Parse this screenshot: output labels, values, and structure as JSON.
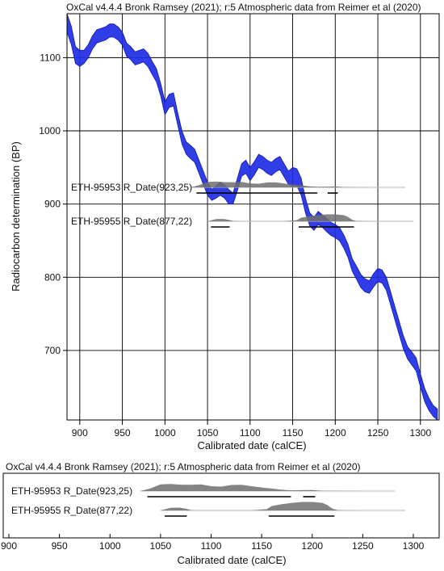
{
  "chart_data": [
    {
      "type": "area",
      "title": "OxCal v4.4.4 Bronk Ramsey (2021); r:5 Atmospheric data from Reimer et al (2020)",
      "xlabel": "Calibrated date (calCE)",
      "ylabel": "Radiocarbon determination (BP)",
      "xlim": [
        885,
        1322
      ],
      "ylim": [
        605,
        1160
      ],
      "x_ticks": [
        "900",
        "950",
        "1000",
        "1050",
        "1100",
        "1150",
        "1200",
        "1250",
        "1300"
      ],
      "y_ticks": [
        "700",
        "800",
        "900",
        "1000",
        "1100"
      ],
      "grid": true,
      "calibration_curve": {
        "colour": "#1f2ee6",
        "x": [
          885,
          890,
          895,
          900,
          905,
          910,
          915,
          920,
          925,
          930,
          935,
          940,
          945,
          950,
          955,
          960,
          965,
          970,
          975,
          980,
          985,
          990,
          995,
          1000,
          1005,
          1010,
          1015,
          1020,
          1025,
          1030,
          1035,
          1040,
          1045,
          1050,
          1055,
          1060,
          1065,
          1070,
          1075,
          1080,
          1085,
          1090,
          1095,
          1100,
          1105,
          1110,
          1115,
          1120,
          1125,
          1130,
          1135,
          1140,
          1145,
          1150,
          1155,
          1160,
          1165,
          1170,
          1175,
          1180,
          1185,
          1190,
          1195,
          1200,
          1205,
          1210,
          1215,
          1220,
          1225,
          1230,
          1235,
          1240,
          1245,
          1250,
          1255,
          1260,
          1265,
          1270,
          1275,
          1280,
          1285,
          1290,
          1295,
          1300,
          1305,
          1310,
          1315,
          1320
        ],
        "upper": [
          1160,
          1143,
          1115,
          1110,
          1110,
          1118,
          1130,
          1138,
          1140,
          1142,
          1146,
          1146,
          1142,
          1135,
          1120,
          1115,
          1108,
          1110,
          1112,
          1106,
          1095,
          1085,
          1065,
          1040,
          1050,
          1052,
          1025,
          1000,
          985,
          980,
          975,
          960,
          945,
          930,
          920,
          925,
          930,
          926,
          920,
          915,
          935,
          955,
          960,
          950,
          958,
          968,
          965,
          960,
          957,
          962,
          965,
          955,
          945,
          950,
          948,
          935,
          908,
          888,
          882,
          890,
          885,
          880,
          875,
          872,
          868,
          858,
          845,
          825,
          815,
          804,
          798,
          795,
          805,
          812,
          810,
          800,
          780,
          760,
          740,
          720,
          705,
          698,
          690,
          668,
          648,
          635,
          625,
          620
        ],
        "lower": [
          1135,
          1118,
          1092,
          1088,
          1092,
          1100,
          1112,
          1120,
          1122,
          1124,
          1128,
          1128,
          1124,
          1117,
          1102,
          1097,
          1090,
          1092,
          1094,
          1088,
          1077,
          1067,
          1048,
          1022,
          1032,
          1034,
          1008,
          982,
          968,
          962,
          957,
          942,
          927,
          912,
          905,
          908,
          912,
          908,
          900,
          900,
          918,
          938,
          942,
          932,
          940,
          950,
          947,
          942,
          939,
          944,
          947,
          937,
          927,
          925,
          925,
          912,
          888,
          870,
          864,
          872,
          868,
          862,
          857,
          854,
          850,
          840,
          827,
          808,
          797,
          786,
          780,
          778,
          787,
          794,
          792,
          782,
          762,
          742,
          722,
          702,
          688,
          680,
          672,
          650,
          630,
          618,
          610,
          605
        ]
      },
      "samples": [
        {
          "name": "ETH-95953 R_Date(923,25)",
          "range": [
            1030,
            1282
          ],
          "probability": {
            "x": [
              1030,
              1040,
              1050,
              1060,
              1070,
              1080,
              1090,
              1100,
              1110,
              1120,
              1130,
              1140,
              1150,
              1160,
              1170,
              1180,
              1190,
              1200,
              1210,
              1220,
              1230,
              1240,
              1250,
              1260,
              1270,
              1282
            ],
            "p": [
              0,
              0.3,
              0.75,
              0.8,
              0.72,
              0.7,
              0.75,
              0.55,
              0.5,
              0.68,
              0.7,
              0.55,
              0.4,
              0.28,
              0.15,
              0.08,
              0.1,
              0.12,
              0.04,
              0.02,
              0.01,
              0.005,
              0.003,
              0.002,
              0.001,
              0
            ]
          },
          "hpd_bars": [
            [
              1037,
              1179
            ],
            [
              1191,
              1203
            ]
          ]
        },
        {
          "name": "ETH-95955 R_Date(877,22)",
          "range": [
            1050,
            1292
          ],
          "probability": {
            "x": [
              1050,
              1055,
              1060,
              1065,
              1070,
              1075,
              1080,
              1085,
              1090,
              1100,
              1120,
              1140,
              1155,
              1160,
              1170,
              1180,
              1190,
              1200,
              1210,
              1215,
              1220,
              1225,
              1235,
              1250,
              1270,
              1292
            ],
            "p": [
              0,
              0.15,
              0.3,
              0.32,
              0.3,
              0.2,
              0.05,
              0.01,
              0.005,
              0.005,
              0.005,
              0.01,
              0.15,
              0.5,
              0.7,
              0.85,
              0.95,
              0.95,
              0.85,
              0.6,
              0.2,
              0.05,
              0.01,
              0.003,
              0.001,
              0
            ]
          },
          "hpd_bars": [
            [
              1054,
              1076
            ],
            [
              1157,
              1222
            ]
          ]
        }
      ]
    },
    {
      "type": "area",
      "title": "OxCal v4.4.4 Bronk Ramsey (2021); r:5 Atmospheric data from Reimer et al (2020)",
      "xlabel": "Calibrated date  (calCE)",
      "xlim": [
        885,
        1322
      ],
      "x_ticks": [
        "900",
        "950",
        "1000",
        "1050",
        "1100",
        "1150",
        "1200",
        "1250",
        "1300"
      ],
      "samples": [
        {
          "name": "ETH-95953 R_Date(923,25)",
          "range": [
            1030,
            1282
          ],
          "probability": {
            "x": [
              1030,
              1040,
              1050,
              1060,
              1070,
              1080,
              1090,
              1100,
              1110,
              1120,
              1130,
              1140,
              1150,
              1160,
              1170,
              1180,
              1190,
              1200,
              1210,
              1220,
              1230,
              1240,
              1250,
              1260,
              1270,
              1282
            ],
            "p": [
              0,
              0.3,
              0.75,
              0.8,
              0.72,
              0.7,
              0.75,
              0.55,
              0.5,
              0.68,
              0.7,
              0.55,
              0.4,
              0.28,
              0.15,
              0.08,
              0.1,
              0.12,
              0.04,
              0.02,
              0.01,
              0.005,
              0.003,
              0.002,
              0.001,
              0
            ]
          },
          "hpd_bars": [
            [
              1037,
              1179
            ],
            [
              1191,
              1203
            ]
          ]
        },
        {
          "name": "ETH-95955 R_Date(877,22)",
          "range": [
            1050,
            1292
          ],
          "probability": {
            "x": [
              1050,
              1055,
              1060,
              1065,
              1070,
              1075,
              1080,
              1085,
              1090,
              1100,
              1120,
              1140,
              1155,
              1160,
              1170,
              1180,
              1190,
              1200,
              1210,
              1215,
              1220,
              1225,
              1235,
              1250,
              1270,
              1292
            ],
            "p": [
              0,
              0.15,
              0.3,
              0.32,
              0.3,
              0.2,
              0.05,
              0.01,
              0.005,
              0.005,
              0.005,
              0.01,
              0.15,
              0.5,
              0.7,
              0.85,
              0.95,
              0.95,
              0.85,
              0.6,
              0.2,
              0.05,
              0.01,
              0.003,
              0.001,
              0
            ]
          },
          "hpd_bars": [
            [
              1054,
              1076
            ],
            [
              1157,
              1222
            ]
          ]
        }
      ]
    }
  ]
}
